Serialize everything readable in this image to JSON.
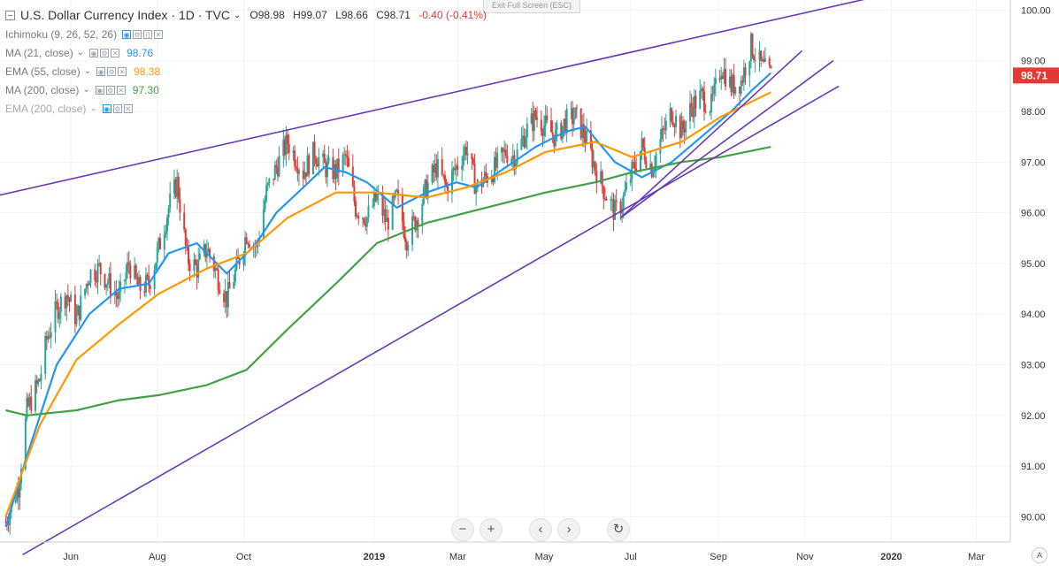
{
  "header": {
    "title": "U.S. Dollar Currency Index · 1D · TVC",
    "open": "O98.98",
    "high": "H99.07",
    "low": "L98.66",
    "close": "C98.71",
    "change": "-0.40 (-0.41%)"
  },
  "exit_fullscreen": "Exit Full Screen (ESC)",
  "indicators": [
    {
      "name": "Ichimoku (9, 26, 52, 26)",
      "value": "",
      "color": "#2196f3"
    },
    {
      "name": "MA (21, close)",
      "value": "98.76",
      "color": "#2196f3"
    },
    {
      "name": "EMA (55, close)",
      "value": "98.38",
      "color": "#ff9800"
    },
    {
      "name": "MA (200, close)",
      "value": "97.30",
      "color": "#43a047"
    },
    {
      "name": "EMA (200, close)",
      "value": "",
      "color": "#2196f3"
    }
  ],
  "price_label": "98.71",
  "auto_label": "A",
  "nav": {
    "zoom_out": "−",
    "zoom_in": "+",
    "prev": "‹",
    "next": "›",
    "reset": "↻"
  },
  "icons": [
    "collapse-icon",
    "settings-icon",
    "visibility-icon",
    "source-code-icon",
    "close-icon",
    "zoom-out-icon",
    "zoom-in-icon",
    "scroll-left-icon",
    "scroll-right-icon",
    "reset-icon"
  ],
  "colors": {
    "up": "#26a69a",
    "down": "#e53935",
    "ma21": "#2196f3",
    "ema55": "#ff9800",
    "ma200": "#43a047",
    "trendline": "#673ab7",
    "price_badge": "#e53935"
  },
  "chart_data": {
    "type": "line",
    "yaxis_ticks": [
      "90.00",
      "91.00",
      "92.00",
      "93.00",
      "94.00",
      "95.00",
      "96.00",
      "97.00",
      "98.00",
      "99.00",
      "100.00"
    ],
    "ylim": [
      89.5,
      100.2
    ],
    "xaxis_labels": [
      {
        "label": "Jun",
        "date": "2018-06-01"
      },
      {
        "label": "Aug",
        "date": "2018-08-01"
      },
      {
        "label": "Oct",
        "date": "2018-10-01"
      },
      {
        "label": "2019",
        "date": "2019-01-01"
      },
      {
        "label": "Mar",
        "date": "2019-03-01"
      },
      {
        "label": "May",
        "date": "2019-05-01"
      },
      {
        "label": "Jul",
        "date": "2019-07-01"
      },
      {
        "label": "Sep",
        "date": "2019-09-01"
      },
      {
        "label": "Nov",
        "date": "2019-11-01"
      },
      {
        "label": "2020",
        "date": "2020-01-01"
      },
      {
        "label": "Mar",
        "date": "2020-03-01"
      }
    ],
    "xlim": [
      "2018-04-12",
      "2020-03-25"
    ],
    "price_dates": [
      "2018-04-16",
      "2018-04-25",
      "2018-05-01",
      "2018-05-10",
      "2018-05-15",
      "2018-05-22",
      "2018-05-29",
      "2018-06-05",
      "2018-06-14",
      "2018-06-21",
      "2018-06-28",
      "2018-07-05",
      "2018-07-12",
      "2018-07-19",
      "2018-07-26",
      "2018-08-02",
      "2018-08-09",
      "2018-08-15",
      "2018-08-22",
      "2018-08-29",
      "2018-09-05",
      "2018-09-12",
      "2018-09-19",
      "2018-09-26",
      "2018-10-03",
      "2018-10-10",
      "2018-10-17",
      "2018-10-24",
      "2018-11-01",
      "2018-11-12",
      "2018-11-20",
      "2018-11-27",
      "2018-12-05",
      "2018-12-12",
      "2018-12-19",
      "2018-12-27",
      "2019-01-03",
      "2019-01-10",
      "2019-01-17",
      "2019-01-24",
      "2019-01-31",
      "2019-02-07",
      "2019-02-14",
      "2019-02-21",
      "2019-02-28",
      "2019-03-07",
      "2019-03-14",
      "2019-03-21",
      "2019-03-28",
      "2019-04-04",
      "2019-04-11",
      "2019-04-18",
      "2019-04-25",
      "2019-05-02",
      "2019-05-09",
      "2019-05-16",
      "2019-05-23",
      "2019-05-30",
      "2019-06-06",
      "2019-06-13",
      "2019-06-20",
      "2019-06-25",
      "2019-07-02",
      "2019-07-09",
      "2019-07-16",
      "2019-07-23",
      "2019-07-30",
      "2019-08-06",
      "2019-08-13",
      "2019-08-20",
      "2019-08-27",
      "2019-09-03",
      "2019-09-10",
      "2019-09-17",
      "2019-09-24",
      "2019-10-01",
      "2019-10-08"
    ],
    "price_close": [
      89.9,
      90.6,
      92.1,
      92.7,
      93.5,
      94.1,
      94.4,
      93.9,
      94.8,
      94.9,
      94.6,
      94.3,
      95.0,
      94.5,
      94.6,
      95.3,
      96.1,
      96.6,
      95.1,
      94.9,
      95.3,
      94.8,
      94.3,
      94.9,
      95.6,
      95.3,
      96.4,
      96.9,
      97.4,
      96.8,
      97.2,
      96.9,
      96.8,
      97.1,
      96.1,
      95.9,
      96.3,
      95.8,
      96.3,
      95.5,
      95.9,
      96.5,
      96.9,
      96.5,
      96.9,
      97.3,
      96.5,
      96.7,
      96.9,
      97.2,
      97.1,
      97.6,
      97.9,
      97.7,
      97.5,
      97.8,
      97.9,
      97.5,
      96.9,
      96.4,
      96.0,
      96.2,
      96.8,
      97.3,
      96.9,
      97.5,
      98.0,
      97.6,
      98.1,
      98.3,
      98.1,
      98.9,
      98.5,
      98.6,
      99.3,
      98.9,
      98.71
    ],
    "series": [
      {
        "name": "MA (21, close)",
        "color": "#2196f3",
        "x": [
          "2018-04-16",
          "2018-05-01",
          "2018-05-22",
          "2018-06-14",
          "2018-07-05",
          "2018-07-26",
          "2018-08-09",
          "2018-08-29",
          "2018-09-19",
          "2018-10-10",
          "2018-10-24",
          "2018-11-12",
          "2018-11-27",
          "2018-12-12",
          "2018-12-27",
          "2019-01-17",
          "2019-02-07",
          "2019-02-28",
          "2019-03-14",
          "2019-04-04",
          "2019-04-25",
          "2019-05-16",
          "2019-05-30",
          "2019-06-20",
          "2019-07-09",
          "2019-07-30",
          "2019-08-20",
          "2019-09-10",
          "2019-09-24",
          "2019-10-08"
        ],
        "y": [
          89.8,
          91.2,
          93.0,
          94.0,
          94.5,
          94.6,
          95.2,
          95.4,
          94.8,
          95.4,
          96.0,
          96.5,
          96.9,
          96.8,
          96.6,
          96.1,
          96.4,
          96.6,
          96.5,
          96.9,
          97.3,
          97.6,
          97.7,
          97.0,
          96.7,
          97.0,
          97.5,
          98.0,
          98.4,
          98.76
        ]
      },
      {
        "name": "EMA (55, close)",
        "color": "#ff9800",
        "x": [
          "2018-04-16",
          "2018-05-10",
          "2018-06-05",
          "2018-07-05",
          "2018-08-02",
          "2018-09-05",
          "2018-10-03",
          "2018-11-01",
          "2018-12-05",
          "2019-01-03",
          "2019-02-07",
          "2019-03-07",
          "2019-04-04",
          "2019-05-02",
          "2019-06-06",
          "2019-07-02",
          "2019-08-06",
          "2019-09-03",
          "2019-10-08"
        ],
        "y": [
          90.0,
          91.8,
          93.1,
          93.8,
          94.4,
          94.9,
          95.2,
          95.9,
          96.4,
          96.4,
          96.3,
          96.5,
          96.8,
          97.2,
          97.4,
          97.1,
          97.4,
          97.9,
          98.38
        ]
      },
      {
        "name": "MA (200, close)",
        "color": "#43a047",
        "x": [
          "2018-04-16",
          "2018-05-01",
          "2018-06-05",
          "2018-07-05",
          "2018-08-02",
          "2018-09-05",
          "2018-10-03",
          "2018-11-01",
          "2018-12-05",
          "2019-01-03",
          "2019-02-07",
          "2019-03-07",
          "2019-04-04",
          "2019-05-02",
          "2019-06-06",
          "2019-07-02",
          "2019-08-06",
          "2019-09-03",
          "2019-10-08"
        ],
        "y": [
          92.1,
          92.0,
          92.1,
          92.3,
          92.4,
          92.6,
          92.9,
          93.7,
          94.6,
          95.4,
          95.8,
          96.0,
          96.2,
          96.4,
          96.6,
          96.8,
          97.0,
          97.1,
          97.3
        ]
      },
      {
        "name": "Upper trendline",
        "color": "#673ab7",
        "x": [
          "2018-04-12",
          "2019-12-19"
        ],
        "y": [
          96.35,
          100.25
        ]
      },
      {
        "name": "Lower trendline",
        "color": "#673ab7",
        "x": [
          "2018-04-28",
          "2019-11-25"
        ],
        "y": [
          89.25,
          98.5
        ]
      },
      {
        "name": "Channel trendline A",
        "color": "#673ab7",
        "x": [
          "2019-06-24",
          "2019-10-30"
        ],
        "y": [
          95.9,
          99.2
        ]
      },
      {
        "name": "Channel trendline B",
        "color": "#673ab7",
        "x": [
          "2019-06-24",
          "2019-11-21"
        ],
        "y": [
          95.9,
          99.0
        ]
      }
    ]
  }
}
